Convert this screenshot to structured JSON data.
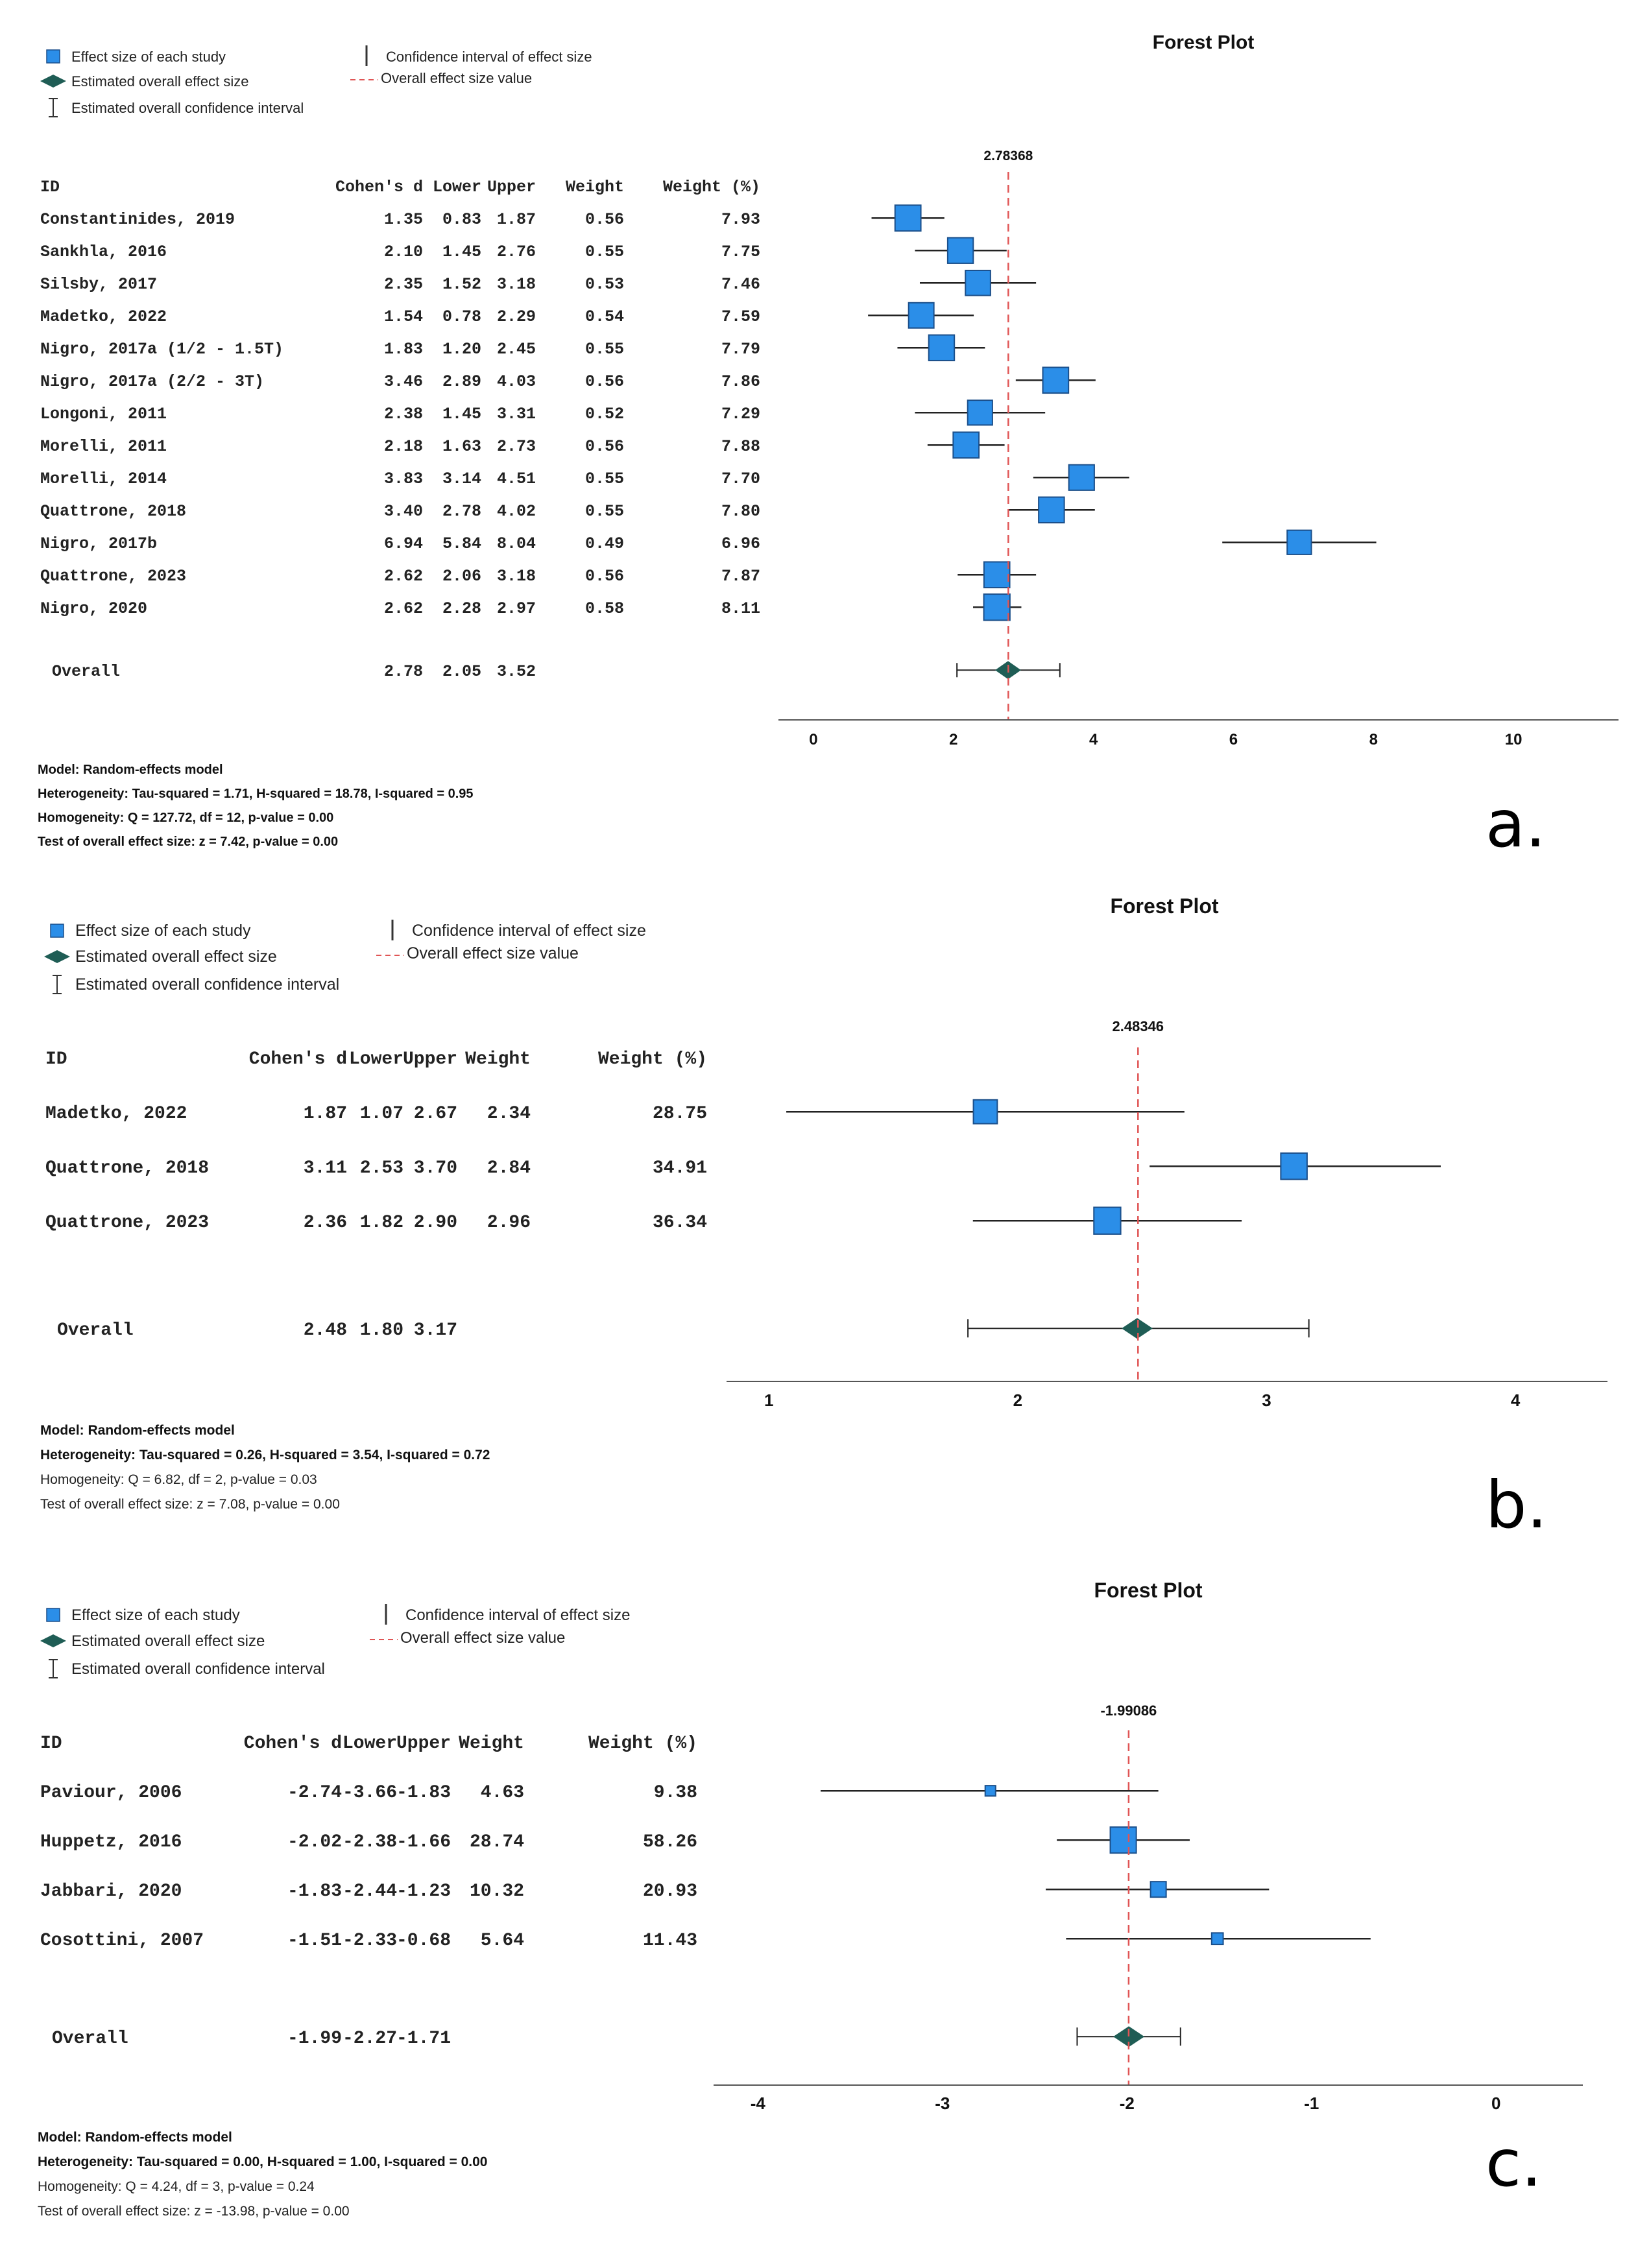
{
  "colors": {
    "study_box": "#2b8ee8",
    "study_box_stroke": "#1b4f8a",
    "diamond": "#1f5d55",
    "ref_line": "#e05555",
    "ci_line": "#222222",
    "axis": "#555555"
  },
  "legend": {
    "study": "Effect size of each study",
    "overall": "Estimated overall effect size",
    "overall_ci": "Estimated overall confidence interval",
    "study_ci": "Confidence interval of effect size",
    "overall_value": "Overall effect size value"
  },
  "chart_data": [
    {
      "type": "forest",
      "panel": "a.",
      "title": "Forest Plot",
      "ref_label": "2.78368",
      "ref_value": 2.78368,
      "xlim": [
        -0.5,
        11.5
      ],
      "ticks": [
        0,
        2,
        4,
        6,
        8,
        10
      ],
      "tick_labels": [
        "0",
        "2",
        "4",
        "6",
        "8",
        "10"
      ],
      "columns": [
        "ID",
        "Cohen's d",
        "Lower",
        "Upper",
        "Weight",
        "Weight (%)"
      ],
      "studies": [
        {
          "id": "Constantinides, 2019",
          "d": "1.35",
          "lo": "0.83",
          "hi": "1.87",
          "w": "0.56",
          "wp": "7.93"
        },
        {
          "id": "Sankhla, 2016",
          "d": "2.10",
          "lo": "1.45",
          "hi": "2.76",
          "w": "0.55",
          "wp": "7.75"
        },
        {
          "id": "Silsby, 2017",
          "d": "2.35",
          "lo": "1.52",
          "hi": "3.18",
          "w": "0.53",
          "wp": "7.46"
        },
        {
          "id": "Madetko, 2022",
          "d": "1.54",
          "lo": "0.78",
          "hi": "2.29",
          "w": "0.54",
          "wp": "7.59"
        },
        {
          "id": "Nigro, 2017a (1/2 - 1.5T)",
          "d": "1.83",
          "lo": "1.20",
          "hi": "2.45",
          "w": "0.55",
          "wp": "7.79"
        },
        {
          "id": "Nigro, 2017a (2/2 - 3T)",
          "d": "3.46",
          "lo": "2.89",
          "hi": "4.03",
          "w": "0.56",
          "wp": "7.86"
        },
        {
          "id": "Longoni, 2011",
          "d": "2.38",
          "lo": "1.45",
          "hi": "3.31",
          "w": "0.52",
          "wp": "7.29"
        },
        {
          "id": "Morelli, 2011",
          "d": "2.18",
          "lo": "1.63",
          "hi": "2.73",
          "w": "0.56",
          "wp": "7.88"
        },
        {
          "id": "Morelli, 2014",
          "d": "3.83",
          "lo": "3.14",
          "hi": "4.51",
          "w": "0.55",
          "wp": "7.70"
        },
        {
          "id": "Quattrone, 2018",
          "d": "3.40",
          "lo": "2.78",
          "hi": "4.02",
          "w": "0.55",
          "wp": "7.80"
        },
        {
          "id": "Nigro, 2017b",
          "d": "6.94",
          "lo": "5.84",
          "hi": "8.04",
          "w": "0.49",
          "wp": "6.96"
        },
        {
          "id": "Quattrone, 2023",
          "d": "2.62",
          "lo": "2.06",
          "hi": "3.18",
          "w": "0.56",
          "wp": "7.87"
        },
        {
          "id": "Nigro, 2020",
          "d": "2.62",
          "lo": "2.28",
          "hi": "2.97",
          "w": "0.58",
          "wp": "8.11"
        }
      ],
      "overall": {
        "id": "Overall",
        "d": "2.78",
        "lo": "2.05",
        "hi": "3.52"
      },
      "footer": [
        {
          "text": "Model: Random-effects model",
          "bold": true
        },
        {
          "text": "Heterogeneity: Tau-squared = 1.71, H-squared = 18.78, I-squared = 0.95",
          "bold": true
        },
        {
          "text": "Homogeneity: Q = 127.72, df = 12, p-value = 0.00",
          "bold": true
        },
        {
          "text": "Test of overall effect size: z = 7.42, p-value = 0.00",
          "bold": true
        }
      ]
    },
    {
      "type": "forest",
      "panel": "b.",
      "title": "Forest Plot",
      "ref_label": "2.48346",
      "ref_value": 2.48346,
      "xlim": [
        0.83,
        4.37
      ],
      "ticks": [
        1,
        2,
        3,
        4
      ],
      "tick_labels": [
        "1",
        "2",
        "3",
        "4"
      ],
      "columns": [
        "ID",
        "Cohen's d",
        "Lower",
        "Upper",
        "Weight",
        "Weight (%)"
      ],
      "studies": [
        {
          "id": "Madetko, 2022",
          "d": "1.87",
          "lo": "1.07",
          "hi": "2.67",
          "w": "2.34",
          "wp": "28.75"
        },
        {
          "id": "Quattrone, 2018",
          "d": "3.11",
          "lo": "2.53",
          "hi": "3.70",
          "w": "2.84",
          "wp": "34.91"
        },
        {
          "id": "Quattrone, 2023",
          "d": "2.36",
          "lo": "1.82",
          "hi": "2.90",
          "w": "2.96",
          "wp": "36.34"
        }
      ],
      "overall": {
        "id": "Overall",
        "d": "2.48",
        "lo": "1.80",
        "hi": "3.17"
      },
      "footer": [
        {
          "text": "Model: Random-effects model",
          "bold": true
        },
        {
          "text": "Heterogeneity: Tau-squared = 0.26, H-squared = 3.54, I-squared = 0.72",
          "bold": true
        },
        {
          "text": "Homogeneity: Q = 6.82, df = 2, p-value = 0.03",
          "bold": false
        },
        {
          "text": "Test of overall effect size: z = 7.08, p-value = 0.00",
          "bold": false
        }
      ]
    },
    {
      "type": "forest",
      "panel": "c.",
      "title": "Forest Plot",
      "ref_label": "-1.99086",
      "ref_value": -1.99086,
      "xlim": [
        -4.24,
        0.47
      ],
      "ticks": [
        -4,
        -3,
        -2,
        -1,
        0
      ],
      "tick_labels": [
        "-4",
        "-3",
        "-2",
        "-1",
        "0"
      ],
      "columns": [
        "ID",
        "Cohen's d",
        "Lower",
        "Upper",
        "Weight",
        "Weight (%)"
      ],
      "studies": [
        {
          "id": "Paviour, 2006",
          "d": "-2.74",
          "lo": "-3.66",
          "hi": "-1.83",
          "w": "4.63",
          "wp": "9.38"
        },
        {
          "id": "Huppetz, 2016",
          "d": "-2.02",
          "lo": "-2.38",
          "hi": "-1.66",
          "w": "28.74",
          "wp": "58.26"
        },
        {
          "id": "Jabbari, 2020",
          "d": "-1.83",
          "lo": "-2.44",
          "hi": "-1.23",
          "w": "10.32",
          "wp": "20.93"
        },
        {
          "id": "Cosottini, 2007",
          "d": "-1.51",
          "lo": "-2.33",
          "hi": "-0.68",
          "w": "5.64",
          "wp": "11.43"
        }
      ],
      "overall": {
        "id": "Overall",
        "d": "-1.99",
        "lo": "-2.27",
        "hi": "-1.71"
      },
      "footer": [
        {
          "text": "Model: Random-effects model",
          "bold": true
        },
        {
          "text": "Heterogeneity: Tau-squared = 0.00, H-squared = 1.00, I-squared = 0.00",
          "bold": true
        },
        {
          "text": "Homogeneity: Q = 4.24, df = 3, p-value = 0.24",
          "bold": false
        },
        {
          "text": "Test of overall effect size: z = -13.98, p-value = 0.00",
          "bold": false
        }
      ]
    }
  ]
}
